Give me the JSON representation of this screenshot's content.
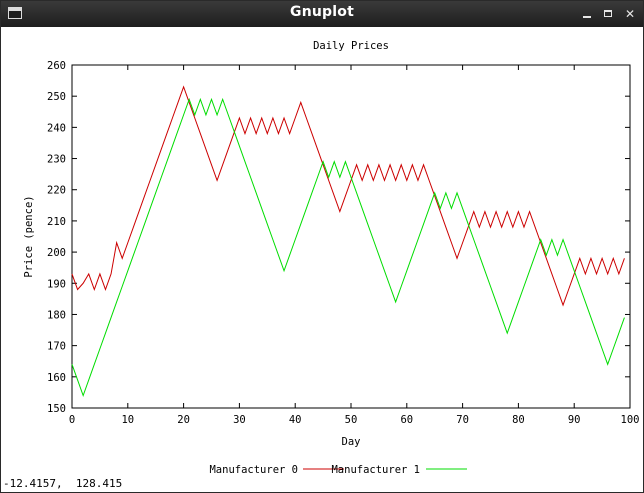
{
  "window": {
    "title": "Gnuplot",
    "buttons": {
      "minimize": "minimize-icon",
      "maximize": "maximize-icon",
      "close": "close-icon"
    }
  },
  "status": {
    "coords": "-12.4157,  128.415"
  },
  "chart_data": {
    "type": "line",
    "title": "Daily Prices",
    "xlabel": "Day",
    "ylabel": "Price (pence)",
    "xlim": [
      0,
      100
    ],
    "ylim": [
      150,
      260
    ],
    "xticks": [
      0,
      10,
      20,
      30,
      40,
      50,
      60,
      70,
      80,
      90,
      100
    ],
    "yticks": [
      150,
      160,
      170,
      180,
      190,
      200,
      210,
      220,
      230,
      240,
      250,
      260
    ],
    "grid": false,
    "legend_position": "bottom-center",
    "series": [
      {
        "name": "Manufacturer 0",
        "color": "#cc0000",
        "points": [
          [
            0,
            193
          ],
          [
            1,
            188
          ],
          [
            2,
            190
          ],
          [
            3,
            193
          ],
          [
            4,
            188
          ],
          [
            5,
            193
          ],
          [
            6,
            188
          ],
          [
            7,
            193
          ],
          [
            8,
            203
          ],
          [
            9,
            198
          ],
          [
            10,
            203
          ],
          [
            11,
            208
          ],
          [
            12,
            213
          ],
          [
            13,
            218
          ],
          [
            14,
            223
          ],
          [
            15,
            228
          ],
          [
            16,
            233
          ],
          [
            17,
            238
          ],
          [
            18,
            243
          ],
          [
            19,
            248
          ],
          [
            20,
            253
          ],
          [
            21,
            248
          ],
          [
            22,
            243
          ],
          [
            23,
            238
          ],
          [
            24,
            233
          ],
          [
            25,
            228
          ],
          [
            26,
            223
          ],
          [
            27,
            228
          ],
          [
            28,
            233
          ],
          [
            29,
            238
          ],
          [
            30,
            243
          ],
          [
            31,
            238
          ],
          [
            32,
            243
          ],
          [
            33,
            238
          ],
          [
            34,
            243
          ],
          [
            35,
            238
          ],
          [
            36,
            243
          ],
          [
            37,
            238
          ],
          [
            38,
            243
          ],
          [
            39,
            238
          ],
          [
            40,
            243
          ],
          [
            41,
            248
          ],
          [
            42,
            243
          ],
          [
            43,
            238
          ],
          [
            44,
            233
          ],
          [
            45,
            228
          ],
          [
            46,
            223
          ],
          [
            47,
            218
          ],
          [
            48,
            213
          ],
          [
            49,
            218
          ],
          [
            50,
            223
          ],
          [
            51,
            228
          ],
          [
            52,
            223
          ],
          [
            53,
            228
          ],
          [
            54,
            223
          ],
          [
            55,
            228
          ],
          [
            56,
            223
          ],
          [
            57,
            228
          ],
          [
            58,
            223
          ],
          [
            59,
            228
          ],
          [
            60,
            223
          ],
          [
            61,
            228
          ],
          [
            62,
            223
          ],
          [
            63,
            228
          ],
          [
            64,
            223
          ],
          [
            65,
            218
          ],
          [
            66,
            213
          ],
          [
            67,
            208
          ],
          [
            68,
            203
          ],
          [
            69,
            198
          ],
          [
            70,
            203
          ],
          [
            71,
            208
          ],
          [
            72,
            213
          ],
          [
            73,
            208
          ],
          [
            74,
            213
          ],
          [
            75,
            208
          ],
          [
            76,
            213
          ],
          [
            77,
            208
          ],
          [
            78,
            213
          ],
          [
            79,
            208
          ],
          [
            80,
            213
          ],
          [
            81,
            208
          ],
          [
            82,
            213
          ],
          [
            83,
            208
          ],
          [
            84,
            203
          ],
          [
            85,
            198
          ],
          [
            86,
            193
          ],
          [
            87,
            188
          ],
          [
            88,
            183
          ],
          [
            89,
            188
          ],
          [
            90,
            193
          ],
          [
            91,
            198
          ],
          [
            92,
            193
          ],
          [
            93,
            198
          ],
          [
            94,
            193
          ],
          [
            95,
            198
          ],
          [
            96,
            193
          ],
          [
            97,
            198
          ],
          [
            98,
            193
          ],
          [
            99,
            198
          ]
        ]
      },
      {
        "name": "Manufacturer 1",
        "color": "#00dd00",
        "points": [
          [
            0,
            164
          ],
          [
            1,
            159
          ],
          [
            2,
            154
          ],
          [
            3,
            159
          ],
          [
            4,
            164
          ],
          [
            5,
            169
          ],
          [
            6,
            174
          ],
          [
            7,
            179
          ],
          [
            8,
            184
          ],
          [
            9,
            189
          ],
          [
            10,
            194
          ],
          [
            11,
            199
          ],
          [
            12,
            204
          ],
          [
            13,
            209
          ],
          [
            14,
            214
          ],
          [
            15,
            219
          ],
          [
            16,
            224
          ],
          [
            17,
            229
          ],
          [
            18,
            234
          ],
          [
            19,
            239
          ],
          [
            20,
            244
          ],
          [
            21,
            249
          ],
          [
            22,
            244
          ],
          [
            23,
            249
          ],
          [
            24,
            244
          ],
          [
            25,
            249
          ],
          [
            26,
            244
          ],
          [
            27,
            249
          ],
          [
            28,
            244
          ],
          [
            29,
            239
          ],
          [
            30,
            234
          ],
          [
            31,
            229
          ],
          [
            32,
            224
          ],
          [
            33,
            219
          ],
          [
            34,
            214
          ],
          [
            35,
            209
          ],
          [
            36,
            204
          ],
          [
            37,
            199
          ],
          [
            38,
            194
          ],
          [
            39,
            199
          ],
          [
            40,
            204
          ],
          [
            41,
            209
          ],
          [
            42,
            214
          ],
          [
            43,
            219
          ],
          [
            44,
            224
          ],
          [
            45,
            229
          ],
          [
            46,
            224
          ],
          [
            47,
            229
          ],
          [
            48,
            224
          ],
          [
            49,
            229
          ],
          [
            50,
            224
          ],
          [
            51,
            219
          ],
          [
            52,
            214
          ],
          [
            53,
            209
          ],
          [
            54,
            204
          ],
          [
            55,
            199
          ],
          [
            56,
            194
          ],
          [
            57,
            189
          ],
          [
            58,
            184
          ],
          [
            59,
            189
          ],
          [
            60,
            194
          ],
          [
            61,
            199
          ],
          [
            62,
            204
          ],
          [
            63,
            209
          ],
          [
            64,
            214
          ],
          [
            65,
            219
          ],
          [
            66,
            214
          ],
          [
            67,
            219
          ],
          [
            68,
            214
          ],
          [
            69,
            219
          ],
          [
            70,
            214
          ],
          [
            71,
            209
          ],
          [
            72,
            204
          ],
          [
            73,
            199
          ],
          [
            74,
            194
          ],
          [
            75,
            189
          ],
          [
            76,
            184
          ],
          [
            77,
            179
          ],
          [
            78,
            174
          ],
          [
            79,
            179
          ],
          [
            80,
            184
          ],
          [
            81,
            189
          ],
          [
            82,
            194
          ],
          [
            83,
            199
          ],
          [
            84,
            204
          ],
          [
            85,
            199
          ],
          [
            86,
            204
          ],
          [
            87,
            199
          ],
          [
            88,
            204
          ],
          [
            89,
            199
          ],
          [
            90,
            194
          ],
          [
            91,
            189
          ],
          [
            92,
            184
          ],
          [
            93,
            179
          ],
          [
            94,
            174
          ],
          [
            95,
            169
          ],
          [
            96,
            164
          ],
          [
            97,
            169
          ],
          [
            98,
            174
          ],
          [
            99,
            179
          ]
        ]
      }
    ]
  }
}
